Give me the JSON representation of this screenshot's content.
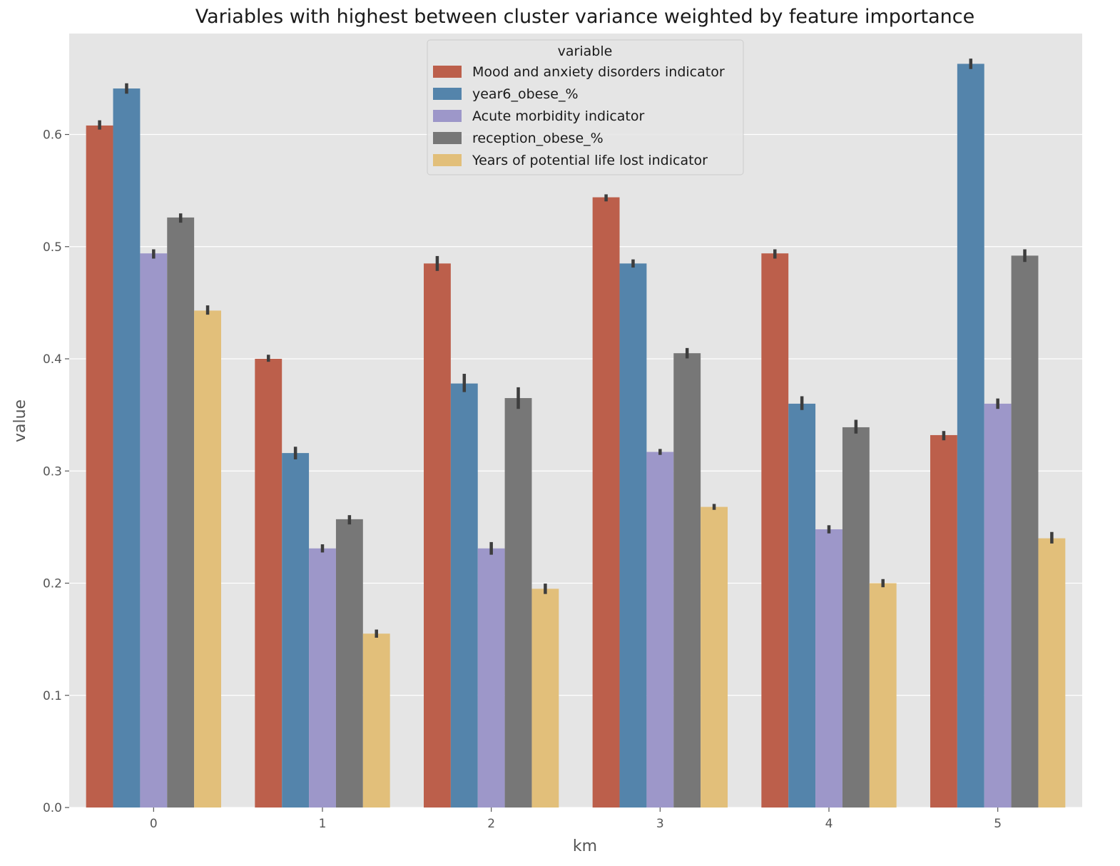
{
  "chart_data": {
    "type": "bar",
    "title": "Variables with highest between cluster variance weighted by feature importance",
    "xlabel": "km",
    "ylabel": "value",
    "categories": [
      "0",
      "1",
      "2",
      "3",
      "4",
      "5"
    ],
    "ylim": [
      0,
      0.69
    ],
    "yticks": [
      "0.0",
      "0.1",
      "0.2",
      "0.3",
      "0.4",
      "0.5",
      "0.6"
    ],
    "grid": true,
    "legend": {
      "title": "variable",
      "placement": "top-center"
    },
    "series": [
      {
        "name": "Mood and anxiety disorders indicator",
        "color": "#bc5f4b",
        "values": [
          0.608,
          0.4,
          0.485,
          0.544,
          0.494,
          0.332
        ],
        "ci": [
          [
            0.605,
            0.612
          ],
          [
            0.398,
            0.403
          ],
          [
            0.479,
            0.491
          ],
          [
            0.541,
            0.546
          ],
          [
            0.49,
            0.497
          ],
          [
            0.328,
            0.335
          ]
        ]
      },
      {
        "name": "year6_obese_%",
        "color": "#5484ab",
        "values": [
          0.641,
          0.316,
          0.378,
          0.485,
          0.36,
          0.663
        ],
        "ci": [
          [
            0.637,
            0.645
          ],
          [
            0.311,
            0.321
          ],
          [
            0.371,
            0.386
          ],
          [
            0.482,
            0.488
          ],
          [
            0.355,
            0.366
          ],
          [
            0.659,
            0.667
          ]
        ]
      },
      {
        "name": "Acute morbidity indicator",
        "color": "#9d97c9",
        "values": [
          0.494,
          0.231,
          0.231,
          0.317,
          0.248,
          0.36
        ],
        "ci": [
          [
            0.49,
            0.497
          ],
          [
            0.228,
            0.234
          ],
          [
            0.226,
            0.236
          ],
          [
            0.315,
            0.319
          ],
          [
            0.245,
            0.251
          ],
          [
            0.356,
            0.364
          ]
        ]
      },
      {
        "name": "reception_obese_%",
        "color": "#777777",
        "values": [
          0.526,
          0.257,
          0.365,
          0.405,
          0.339,
          0.492
        ],
        "ci": [
          [
            0.522,
            0.529
          ],
          [
            0.253,
            0.26
          ],
          [
            0.356,
            0.374
          ],
          [
            0.401,
            0.409
          ],
          [
            0.334,
            0.345
          ],
          [
            0.487,
            0.497
          ]
        ]
      },
      {
        "name": "Years of potential life lost indicator",
        "color": "#e2bf7a",
        "values": [
          0.443,
          0.155,
          0.195,
          0.268,
          0.2,
          0.24
        ],
        "ci": [
          [
            0.44,
            0.447
          ],
          [
            0.152,
            0.158
          ],
          [
            0.191,
            0.199
          ],
          [
            0.266,
            0.27
          ],
          [
            0.197,
            0.203
          ],
          [
            0.236,
            0.245
          ]
        ]
      }
    ]
  }
}
